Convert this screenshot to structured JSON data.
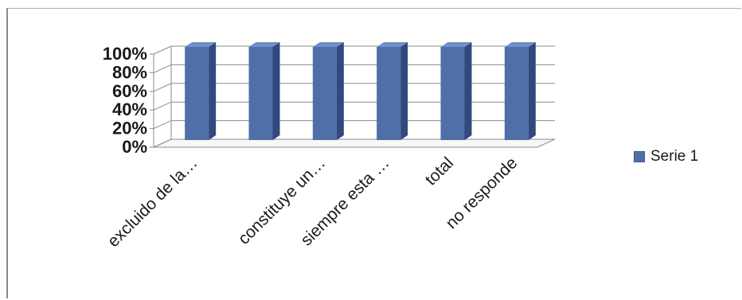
{
  "chart_data": {
    "type": "bar",
    "categories": [
      "excluido de la…",
      "",
      "constituye un…",
      "siempre esta …",
      "total",
      "no responde"
    ],
    "series": [
      {
        "name": "Serie 1",
        "values": [
          100,
          100,
          100,
          100,
          100,
          100
        ]
      }
    ],
    "y_ticks": [
      "0%",
      "20%",
      "40%",
      "60%",
      "80%",
      "100%"
    ],
    "ylim": [
      0,
      100
    ],
    "y_unit": "%",
    "grid": true,
    "legend": "right",
    "color": "#4F6FA8"
  }
}
